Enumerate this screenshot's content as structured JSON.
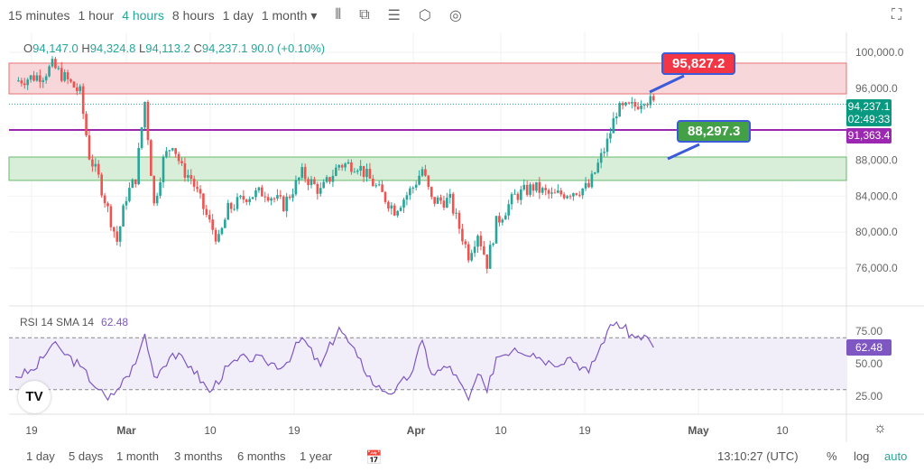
{
  "toolbar": {
    "timeframes": [
      "15 minutes",
      "1 hour",
      "4 hours",
      "8 hours",
      "1 day",
      "1 month ▾"
    ],
    "active": "4 hours",
    "icons": [
      "candles-icon",
      "indicators-icon",
      "alerts-list-icon",
      "settings-icon",
      "camera-icon"
    ],
    "fullscreen_icon": "fullscreen-icon"
  },
  "ohlc": {
    "o_label": "O",
    "o": "94,147.0",
    "h_label": "H",
    "h": "94,324.8",
    "l_label": "L",
    "l": "94,113.2",
    "c_label": "C",
    "c": "94,237.1",
    "change": "90.0 (+0.10%)"
  },
  "price_tags": {
    "last": "94,237.1",
    "countdown": "02:49:33",
    "line": "91,363.4"
  },
  "callouts": {
    "resistance": "95,827.2",
    "support": "88,297.3"
  },
  "rsi": {
    "label": "RSI 14 SMA 14",
    "value": "62.48",
    "ticks": [
      "75.00",
      "50.00",
      "25.00"
    ]
  },
  "bottom": {
    "ranges": [
      "1 day",
      "5 days",
      "1 month",
      "3 months",
      "6 months",
      "1 year"
    ],
    "time": "13:10:27 (UTC)",
    "percent": "%",
    "log": "log",
    "auto": "auto"
  },
  "colors": {
    "up": "#26a69a",
    "down": "#ef5350",
    "rsi": "#7e57c2",
    "line": "#9c27b0",
    "resistance_zone": "#f8d7da",
    "support_zone": "#d8eed9"
  },
  "chart_data": {
    "type": "candlestick",
    "y_ticks": [
      "100,000.0",
      "96,000.0",
      "88,000.0",
      "84,000.0",
      "80,000.0",
      "76,000.0"
    ],
    "ylim": [
      74000,
      102000
    ],
    "x_ticks": [
      "19",
      "Mar",
      "10",
      "19",
      "Apr",
      "10",
      "19",
      "May",
      "10"
    ],
    "zones": [
      {
        "from": 95380,
        "to": 98800,
        "kind": "resistance"
      },
      {
        "from": 85750,
        "to": 88350,
        "kind": "support"
      }
    ],
    "hline": 91363.4,
    "last_price": 94237.1,
    "closes": [
      [
        "02-17",
        96800
      ],
      [
        "02-20",
        97500
      ],
      [
        "02-21",
        98500
      ],
      [
        "02-24",
        95500
      ],
      [
        "02-25",
        88500
      ],
      [
        "02-26",
        86000
      ],
      [
        "02-28",
        79000
      ],
      [
        "03-01",
        84000
      ],
      [
        "03-02",
        86000
      ],
      [
        "03-03",
        94500
      ],
      [
        "03-04",
        83000
      ],
      [
        "03-05",
        88000
      ],
      [
        "03-06",
        90000
      ],
      [
        "03-07",
        87000
      ],
      [
        "03-08",
        86000
      ],
      [
        "03-10",
        81000
      ],
      [
        "03-11",
        79000
      ],
      [
        "03-12",
        82500
      ],
      [
        "03-14",
        84000
      ],
      [
        "03-16",
        84500
      ],
      [
        "03-18",
        83000
      ],
      [
        "03-20",
        86500
      ],
      [
        "03-22",
        84500
      ],
      [
        "03-24",
        87500
      ],
      [
        "03-26",
        87500
      ],
      [
        "03-28",
        85000
      ],
      [
        "03-30",
        82500
      ],
      [
        "04-01",
        85000
      ],
      [
        "04-02",
        87000
      ],
      [
        "04-03",
        83500
      ],
      [
        "04-05",
        83500
      ],
      [
        "04-07",
        77500
      ],
      [
        "04-08",
        80000
      ],
      [
        "04-09",
        76500
      ],
      [
        "04-10",
        81000
      ],
      [
        "04-12",
        84000
      ],
      [
        "04-14",
        85000
      ],
      [
        "04-16",
        84000
      ],
      [
        "04-18",
        84500
      ],
      [
        "04-20",
        85000
      ],
      [
        "04-22",
        90000
      ],
      [
        "04-23",
        93500
      ],
      [
        "04-25",
        94000
      ],
      [
        "04-26",
        95000
      ],
      [
        "04-27",
        94237
      ]
    ],
    "rsi_values": [
      [
        "02-17",
        40
      ],
      [
        "02-19",
        45
      ],
      [
        "02-21",
        65
      ],
      [
        "02-22",
        60
      ],
      [
        "02-24",
        48
      ],
      [
        "02-26",
        30
      ],
      [
        "02-27",
        22
      ],
      [
        "02-28",
        30
      ],
      [
        "03-01",
        40
      ],
      [
        "03-02",
        50
      ],
      [
        "03-03",
        73
      ],
      [
        "03-04",
        40
      ],
      [
        "03-06",
        58
      ],
      [
        "03-08",
        48
      ],
      [
        "03-10",
        28
      ],
      [
        "03-12",
        48
      ],
      [
        "03-14",
        55
      ],
      [
        "03-16",
        52
      ],
      [
        "03-18",
        48
      ],
      [
        "03-20",
        70
      ],
      [
        "03-22",
        48
      ],
      [
        "03-24",
        78
      ],
      [
        "03-26",
        55
      ],
      [
        "03-28",
        32
      ],
      [
        "03-30",
        28
      ],
      [
        "04-01",
        45
      ],
      [
        "04-02",
        68
      ],
      [
        "04-03",
        42
      ],
      [
        "04-05",
        48
      ],
      [
        "04-07",
        22
      ],
      [
        "04-08",
        42
      ],
      [
        "04-09",
        28
      ],
      [
        "04-10",
        55
      ],
      [
        "04-12",
        62
      ],
      [
        "04-14",
        58
      ],
      [
        "04-16",
        50
      ],
      [
        "04-18",
        55
      ],
      [
        "04-20",
        43
      ],
      [
        "04-22",
        75
      ],
      [
        "04-23",
        82
      ],
      [
        "04-25",
        70
      ],
      [
        "04-26",
        72
      ],
      [
        "04-27",
        62.48
      ]
    ],
    "rsi_bands": [
      30,
      70
    ]
  }
}
